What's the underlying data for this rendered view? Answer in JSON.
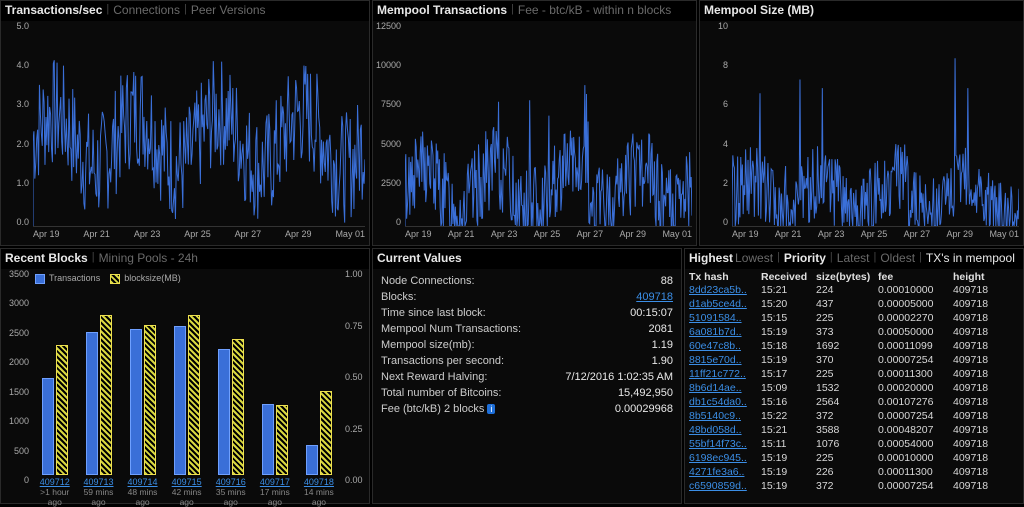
{
  "colors": {
    "line": "#3a6fd8",
    "axis_text": "#aaaaaa",
    "grid": "#1a1a1a",
    "bg": "#0a0a0a",
    "link": "#3b8ee6",
    "bar_tx": "#3a6fd8",
    "bar_block": "#d8d840"
  },
  "typography": {
    "axis_fontsize": 9,
    "header_fontsize": 12,
    "body_fontsize": 11
  },
  "panels": {
    "tx_sec": {
      "tabs": [
        "Transactions/sec",
        "Connections",
        "Peer Versions"
      ],
      "active_tab": 0,
      "type": "line",
      "ylim": [
        0,
        5.0
      ],
      "ytick_step": 1.0,
      "yticks": [
        "5.0",
        "4.0",
        "3.0",
        "2.0",
        "1.0",
        "0.0"
      ],
      "xticks": [
        "Apr 19",
        "Apr 21",
        "Apr 23",
        "Apr 25",
        "Apr 27",
        "Apr 29",
        "May 01"
      ]
    },
    "mempool_tx": {
      "tabs": [
        "Mempool Transactions",
        "Fee - btc/kB - within n blocks"
      ],
      "active_tab": 0,
      "type": "line",
      "ylim": [
        0,
        12500
      ],
      "ytick_step": 2500,
      "yticks": [
        "12500",
        "10000",
        "7500",
        "5000",
        "2500",
        "0"
      ],
      "xticks": [
        "Apr 19",
        "Apr 21",
        "Apr 23",
        "Apr 25",
        "Apr 27",
        "Apr 29",
        "May 01"
      ]
    },
    "mempool_size": {
      "title": "Mempool Size (MB)",
      "type": "line",
      "ylim": [
        0,
        10
      ],
      "ytick_step": 2,
      "yticks": [
        "10",
        "8",
        "6",
        "4",
        "2",
        "0"
      ],
      "xticks": [
        "Apr 19",
        "Apr 21",
        "Apr 23",
        "Apr 25",
        "Apr 27",
        "Apr 29",
        "May 01"
      ]
    },
    "recent_blocks": {
      "tabs": [
        "Recent Blocks",
        "Mining Pools - 24h"
      ],
      "active_tab": 0,
      "type": "bar",
      "legend": {
        "tx": "Transactions",
        "block": "blocksize(MB)"
      },
      "yticks_left": [
        "3500",
        "3000",
        "2500",
        "2000",
        "1500",
        "1000",
        "500",
        "0"
      ],
      "yticks_right": [
        "1.00",
        "0.75",
        "0.50",
        "0.25",
        "0.00"
      ],
      "ylim_left": [
        0,
        3500
      ],
      "ylim_right": [
        0,
        1.0
      ],
      "items": [
        {
          "block": "409712",
          "ago": ">1 hour ago",
          "tx": 1700,
          "size": 0.65
        },
        {
          "block": "409713",
          "ago": "59 mins ago",
          "tx": 2500,
          "size": 0.8
        },
        {
          "block": "409714",
          "ago": "48 mins ago",
          "tx": 2550,
          "size": 0.75
        },
        {
          "block": "409715",
          "ago": "42 mins ago",
          "tx": 2600,
          "size": 0.8
        },
        {
          "block": "409716",
          "ago": "35 mins ago",
          "tx": 2200,
          "size": 0.68
        },
        {
          "block": "409717",
          "ago": "17 mins ago",
          "tx": 1250,
          "size": 0.35
        },
        {
          "block": "409718",
          "ago": "14 mins ago",
          "tx": 530,
          "size": 0.42
        }
      ]
    },
    "current_values": {
      "title": "Current Values",
      "rows": [
        {
          "label": "Node Connections:",
          "value": "88"
        },
        {
          "label": "Blocks:",
          "value": "409718",
          "link": true
        },
        {
          "label": "Time since last block:",
          "value": "00:15:07"
        },
        {
          "label": "Mempool Num Transactions:",
          "value": "2081"
        },
        {
          "label": "Mempool size(mb):",
          "value": "1.19"
        },
        {
          "label": "Transactions per second:",
          "value": "1.90"
        },
        {
          "label": "Next Reward Halving:",
          "value": "7/12/2016 1:02:35 AM"
        },
        {
          "label": "Total number of Bitcoins:",
          "value": "15,492,950"
        },
        {
          "label": "Fee (btc/kB) 2 blocks",
          "value": "0.00029968",
          "info": true
        }
      ]
    },
    "mempool_table": {
      "tabs": [
        "Highest",
        "Lowest",
        "Priority",
        "Latest",
        "Oldest"
      ],
      "active_tab": 0,
      "suffix": "TX's in mempool",
      "columns": [
        "Tx hash",
        "Received",
        "size(bytes)",
        "fee",
        "height"
      ],
      "rows": [
        {
          "hash": "8dd23ca5b..",
          "received": "15:21",
          "size": "224",
          "fee": "0.00010000",
          "height": "409718"
        },
        {
          "hash": "d1ab5ce4d..",
          "received": "15:20",
          "size": "437",
          "fee": "0.00005000",
          "height": "409718"
        },
        {
          "hash": "51091584..",
          "received": "15:15",
          "size": "225",
          "fee": "0.00002270",
          "height": "409718"
        },
        {
          "hash": "6a081b7d..",
          "received": "15:19",
          "size": "373",
          "fee": "0.00050000",
          "height": "409718"
        },
        {
          "hash": "60e47c8b..",
          "received": "15:18",
          "size": "1692",
          "fee": "0.00011099",
          "height": "409718"
        },
        {
          "hash": "8815e70d..",
          "received": "15:19",
          "size": "370",
          "fee": "0.00007254",
          "height": "409718"
        },
        {
          "hash": "11ff21c772..",
          "received": "15:17",
          "size": "225",
          "fee": "0.00011300",
          "height": "409718"
        },
        {
          "hash": "8b6d14ae..",
          "received": "15:09",
          "size": "1532",
          "fee": "0.00020000",
          "height": "409718"
        },
        {
          "hash": "db1c54da0..",
          "received": "15:16",
          "size": "2564",
          "fee": "0.00107276",
          "height": "409718"
        },
        {
          "hash": "8b5140c9..",
          "received": "15:22",
          "size": "372",
          "fee": "0.00007254",
          "height": "409718"
        },
        {
          "hash": "48bd058d..",
          "received": "15:21",
          "size": "3588",
          "fee": "0.00048207",
          "height": "409718"
        },
        {
          "hash": "55bf14f73c..",
          "received": "15:11",
          "size": "1076",
          "fee": "0.00054000",
          "height": "409718"
        },
        {
          "hash": "6198ec945..",
          "received": "15:19",
          "size": "225",
          "fee": "0.00010000",
          "height": "409718"
        },
        {
          "hash": "4271fe3a6..",
          "received": "15:19",
          "size": "226",
          "fee": "0.00011300",
          "height": "409718"
        },
        {
          "hash": "c6590859d..",
          "received": "15:19",
          "size": "372",
          "fee": "0.00007254",
          "height": "409718"
        }
      ]
    }
  }
}
